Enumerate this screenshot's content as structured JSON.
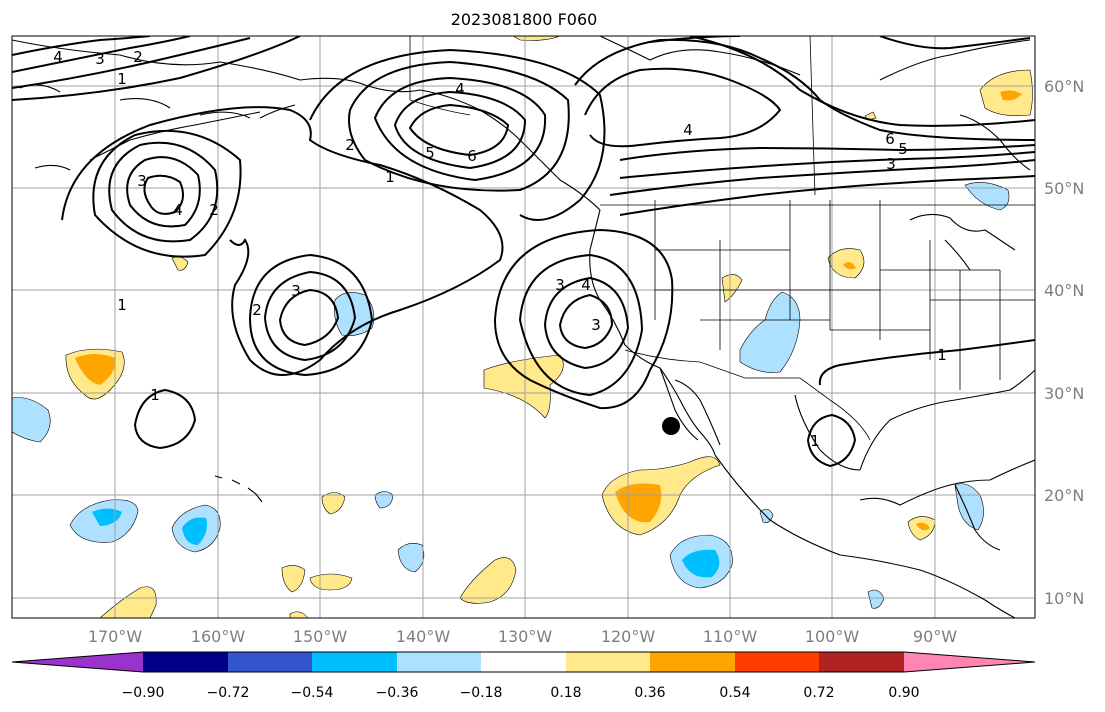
{
  "title": "2023081800 F060",
  "lon_labels": [
    "170°W",
    "160°W",
    "150°W",
    "140°W",
    "130°W",
    "120°W",
    "110°W",
    "100°W",
    "90°W"
  ],
  "lat_labels": [
    "60°N",
    "50°N",
    "40°N",
    "30°N",
    "20°N",
    "10°N"
  ],
  "colorbar": {
    "ticks": [
      "−0.90",
      "−0.72",
      "−0.54",
      "−0.36",
      "−0.18",
      "0.18",
      "0.36",
      "0.54",
      "0.72",
      "0.90"
    ],
    "colors": [
      "#9a33cc",
      "#00008b",
      "#3355cc",
      "#00bfff",
      "#aee0ff",
      "#ffffff",
      "#ffe98a",
      "#ffa500",
      "#ff3d00",
      "#b22222",
      "#ff85b3"
    ]
  },
  "contour_labels": [
    "4",
    "3",
    "2",
    "1",
    "4",
    "6",
    "5",
    "4",
    "6",
    "5",
    "3",
    "2",
    "1",
    "3",
    "4",
    "2",
    "3",
    "2",
    "3",
    "4",
    "3",
    "1",
    "1",
    "1",
    "1"
  ],
  "colors": {
    "land_line": "#000000",
    "grid": "#a0a0a0",
    "contour": "#000000"
  },
  "marker": "observation-point"
}
